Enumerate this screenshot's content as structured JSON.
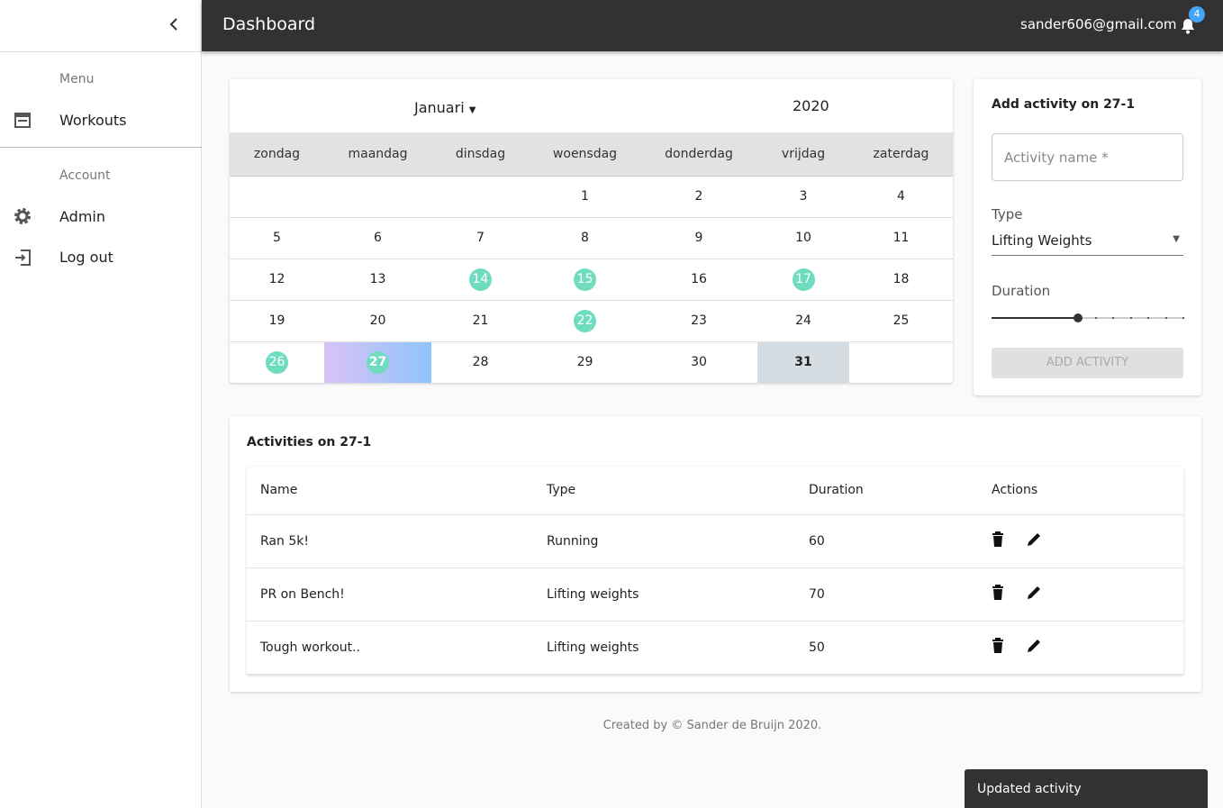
{
  "header": {
    "title": "Dashboard",
    "user": "sander606@gmail.com",
    "notifications": 4
  },
  "sidebar": {
    "menu_heading": "Menu",
    "menu_items": [
      "Workouts"
    ],
    "account_heading": "Account",
    "account_items": [
      "Admin",
      "Log out"
    ]
  },
  "calendar": {
    "month": "Januari",
    "year": 2020,
    "weekdays": [
      "zondag",
      "maandag",
      "dinsdag",
      "woensdag",
      "donderdag",
      "vrijdag",
      "zaterdag"
    ],
    "weeks": [
      [
        null,
        null,
        null,
        1,
        2,
        3,
        4
      ],
      [
        5,
        6,
        7,
        8,
        9,
        10,
        11
      ],
      [
        12,
        13,
        14,
        15,
        16,
        17,
        18
      ],
      [
        19,
        20,
        21,
        22,
        23,
        24,
        25
      ],
      [
        26,
        27,
        28,
        29,
        30,
        31,
        null
      ]
    ],
    "marked_days": [
      14,
      15,
      17,
      22,
      26,
      27
    ],
    "selected_day": 27,
    "today": 31
  },
  "add_activity": {
    "title": "Add activity on 27-1",
    "name_placeholder": "Activity name *",
    "type_label": "Type",
    "type_value": "Lifting Weights",
    "duration_label": "Duration",
    "button": "ADD ACTIVITY"
  },
  "activities": {
    "title": "Activities on 27-1",
    "columns": [
      "Name",
      "Type",
      "Duration",
      "Actions"
    ],
    "rows": [
      [
        "Ran 5k!",
        "Running",
        60
      ],
      [
        "PR on Bench!",
        "Lifting weights",
        70
      ],
      [
        "Tough workout..",
        "Lifting weights",
        50
      ]
    ]
  },
  "footer": "Created by © Sander de Bruijn 2020.",
  "snackbar": "Updated activity"
}
